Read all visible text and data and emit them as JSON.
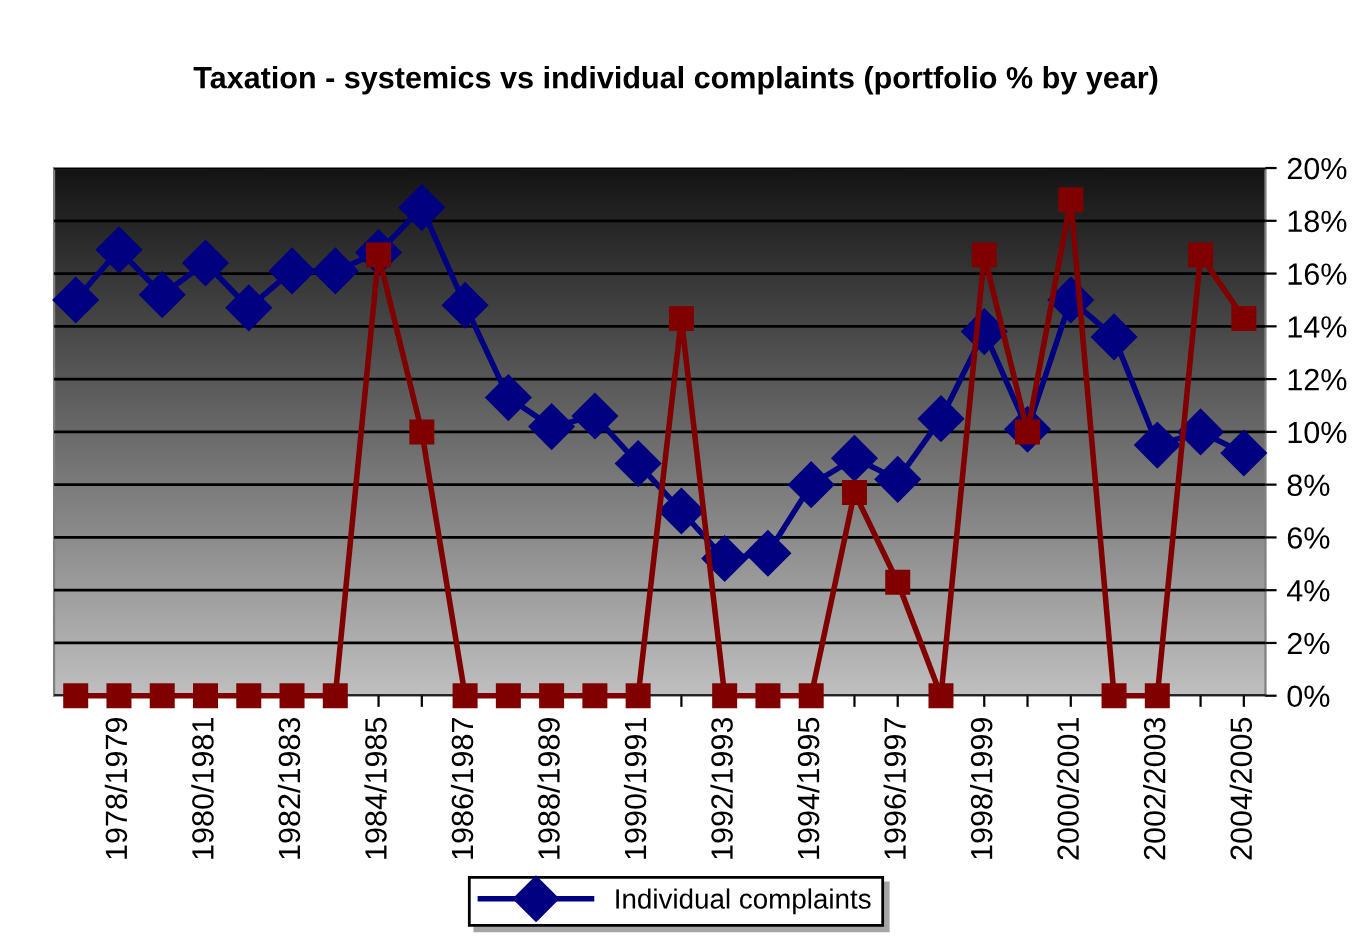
{
  "chart_data": {
    "type": "line",
    "title": "Taxation - systemics vs individual complaints (portfolio % by year)",
    "categories": [
      null,
      "1978/1979",
      null,
      "1980/1981",
      null,
      "1982/1983",
      null,
      "1984/1985",
      null,
      "1986/1987",
      null,
      "1988/1989",
      null,
      "1990/1991",
      null,
      "1992/1993",
      null,
      "1994/1995",
      null,
      "1996/1997",
      null,
      "1998/1999",
      null,
      "2000/2001",
      null,
      "2002/2003",
      null,
      "2004/2005"
    ],
    "series": [
      {
        "name": "Individual complaints",
        "color": "#000080",
        "marker": "diamond",
        "values": [
          15.0,
          16.9,
          15.2,
          16.4,
          14.7,
          16.1,
          16.1,
          16.8,
          18.5,
          14.8,
          11.3,
          10.2,
          10.6,
          8.8,
          7.0,
          5.2,
          5.4,
          8.0,
          9.0,
          8.2,
          10.5,
          13.8,
          10.1,
          15.0,
          13.6,
          9.5,
          10.0,
          9.2
        ]
      },
      {
        "color": "#800000",
        "marker": "square",
        "values": [
          0,
          0,
          0,
          0,
          0,
          0,
          0,
          16.7,
          10.0,
          0,
          0,
          0,
          0,
          0,
          14.3,
          0,
          0,
          0,
          7.7,
          4.3,
          0,
          16.7,
          10.0,
          18.8,
          0,
          0,
          16.7,
          14.3
        ]
      }
    ],
    "ylim": [
      0,
      20
    ],
    "yticks": [
      {
        "value": 0,
        "label": "0%"
      },
      {
        "value": 2,
        "label": "2%"
      },
      {
        "value": 4,
        "label": "4%"
      },
      {
        "value": 6,
        "label": "6%"
      },
      {
        "value": 8,
        "label": "8%"
      },
      {
        "value": 10,
        "label": "10%"
      },
      {
        "value": 12,
        "label": "12%"
      },
      {
        "value": 14,
        "label": "14%"
      },
      {
        "value": 16,
        "label": "16%"
      },
      {
        "value": 18,
        "label": "18%"
      },
      {
        "value": 20,
        "label": "20%"
      }
    ],
    "grid": "y",
    "legend": "bottom",
    "line_style": "solid"
  }
}
